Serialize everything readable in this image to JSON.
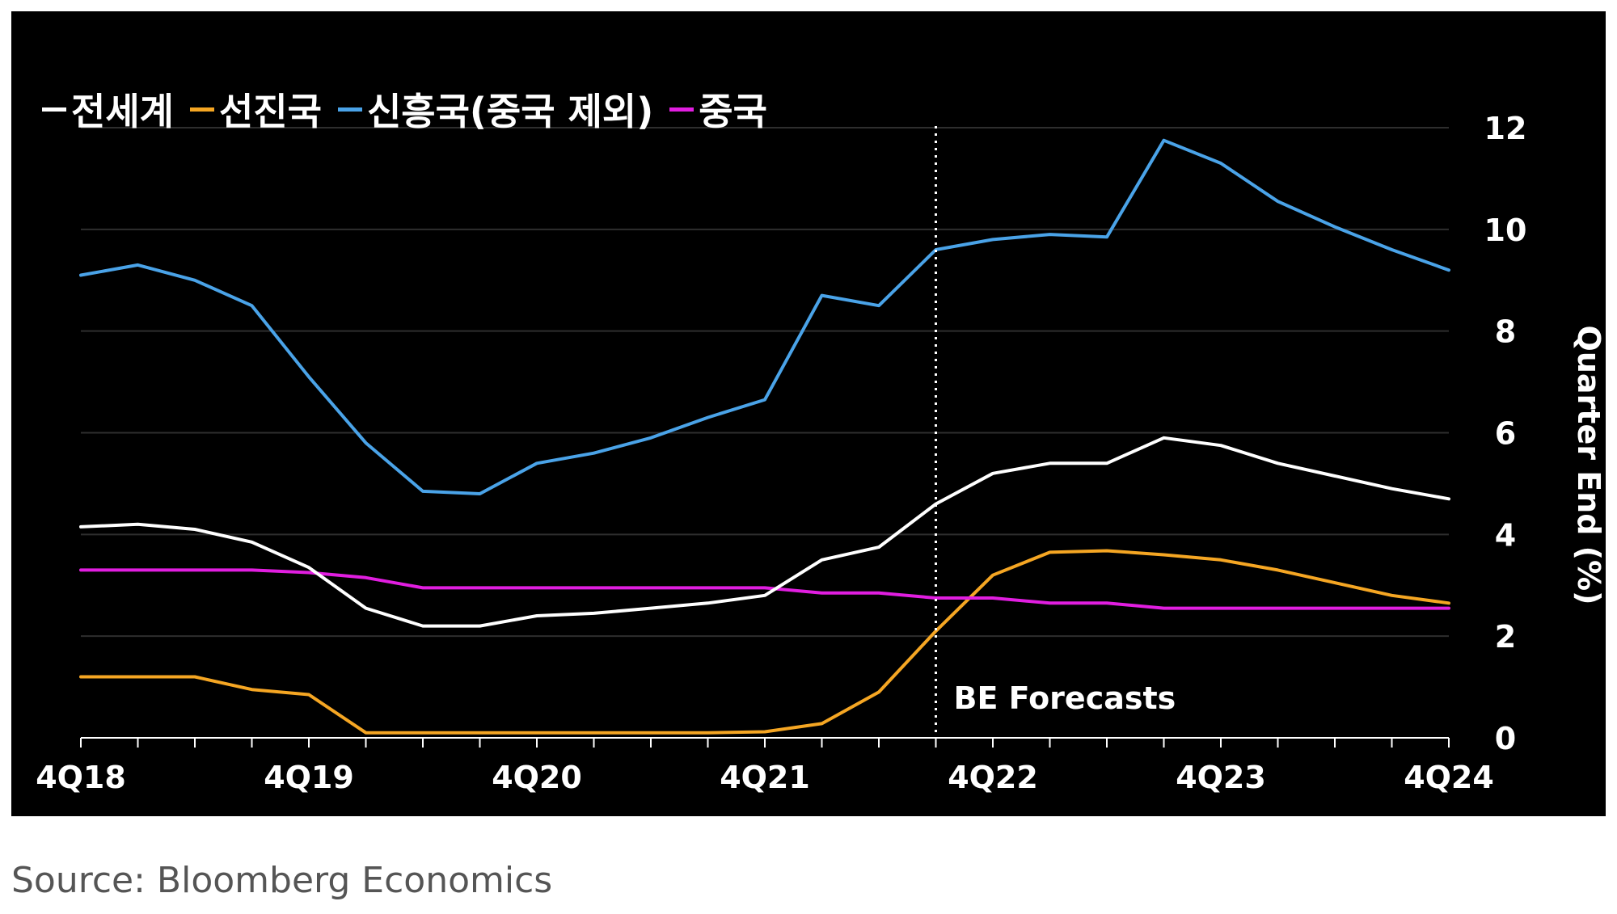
{
  "source_text": "Source: Bloomberg Economics",
  "colors": {
    "background": "#000000",
    "world": "#ffffff",
    "advanced": "#f5a623",
    "emerging": "#4aa3e8",
    "china": "#e11ee0",
    "grid": "#2e2e2e",
    "axis": "#ffffff"
  },
  "chart_data": {
    "type": "line",
    "title": "",
    "ylabel": "Quarter End (%)",
    "xlabel": "",
    "ylim": [
      0,
      12
    ],
    "yticks": [
      "0",
      "2",
      "4",
      "6",
      "8",
      "10",
      "12"
    ],
    "yaxis_side": "right",
    "grid": "horizontal",
    "legend_position": "top-left",
    "x": [
      "4Q18",
      "1Q19",
      "2Q19",
      "3Q19",
      "4Q19",
      "1Q20",
      "2Q20",
      "3Q20",
      "4Q20",
      "1Q21",
      "2Q21",
      "3Q21",
      "4Q21",
      "1Q22",
      "2Q22",
      "3Q22",
      "4Q22",
      "1Q23",
      "2Q23",
      "3Q23",
      "4Q23",
      "1Q24",
      "2Q24",
      "3Q24",
      "4Q24"
    ],
    "xtick_labels": [
      "4Q18",
      "4Q19",
      "4Q20",
      "4Q21",
      "4Q22",
      "4Q23",
      "4Q24"
    ],
    "annotation": {
      "label": "BE Forecasts",
      "x": "3Q22"
    },
    "series": [
      {
        "name": "전세계",
        "color_key": "world",
        "values": [
          4.15,
          4.2,
          4.1,
          3.85,
          3.35,
          2.55,
          2.2,
          2.2,
          2.4,
          2.45,
          2.55,
          2.65,
          2.8,
          3.5,
          3.75,
          4.6,
          5.2,
          5.4,
          5.4,
          5.9,
          5.75,
          5.4,
          5.15,
          4.9,
          4.7
        ]
      },
      {
        "name": "선진국",
        "color_key": "advanced",
        "values": [
          1.2,
          1.2,
          1.2,
          0.95,
          0.85,
          0.1,
          0.1,
          0.1,
          0.1,
          0.1,
          0.1,
          0.1,
          0.12,
          0.28,
          0.9,
          2.1,
          3.2,
          3.65,
          3.68,
          3.6,
          3.5,
          3.3,
          3.05,
          2.8,
          2.65
        ]
      },
      {
        "name": "신흥국(중국 제외)",
        "color_key": "emerging",
        "values": [
          9.1,
          9.3,
          9.0,
          8.5,
          7.1,
          5.8,
          4.85,
          4.8,
          5.4,
          5.6,
          5.9,
          6.3,
          6.65,
          8.7,
          8.5,
          9.6,
          9.8,
          9.9,
          9.85,
          11.75,
          11.3,
          10.55,
          10.05,
          9.6,
          9.2
        ]
      },
      {
        "name": "중국",
        "color_key": "china",
        "values": [
          3.3,
          3.3,
          3.3,
          3.3,
          3.25,
          3.15,
          2.95,
          2.95,
          2.95,
          2.95,
          2.95,
          2.95,
          2.95,
          2.85,
          2.85,
          2.75,
          2.75,
          2.65,
          2.65,
          2.55,
          2.55,
          2.55,
          2.55,
          2.55,
          2.55
        ]
      }
    ]
  }
}
